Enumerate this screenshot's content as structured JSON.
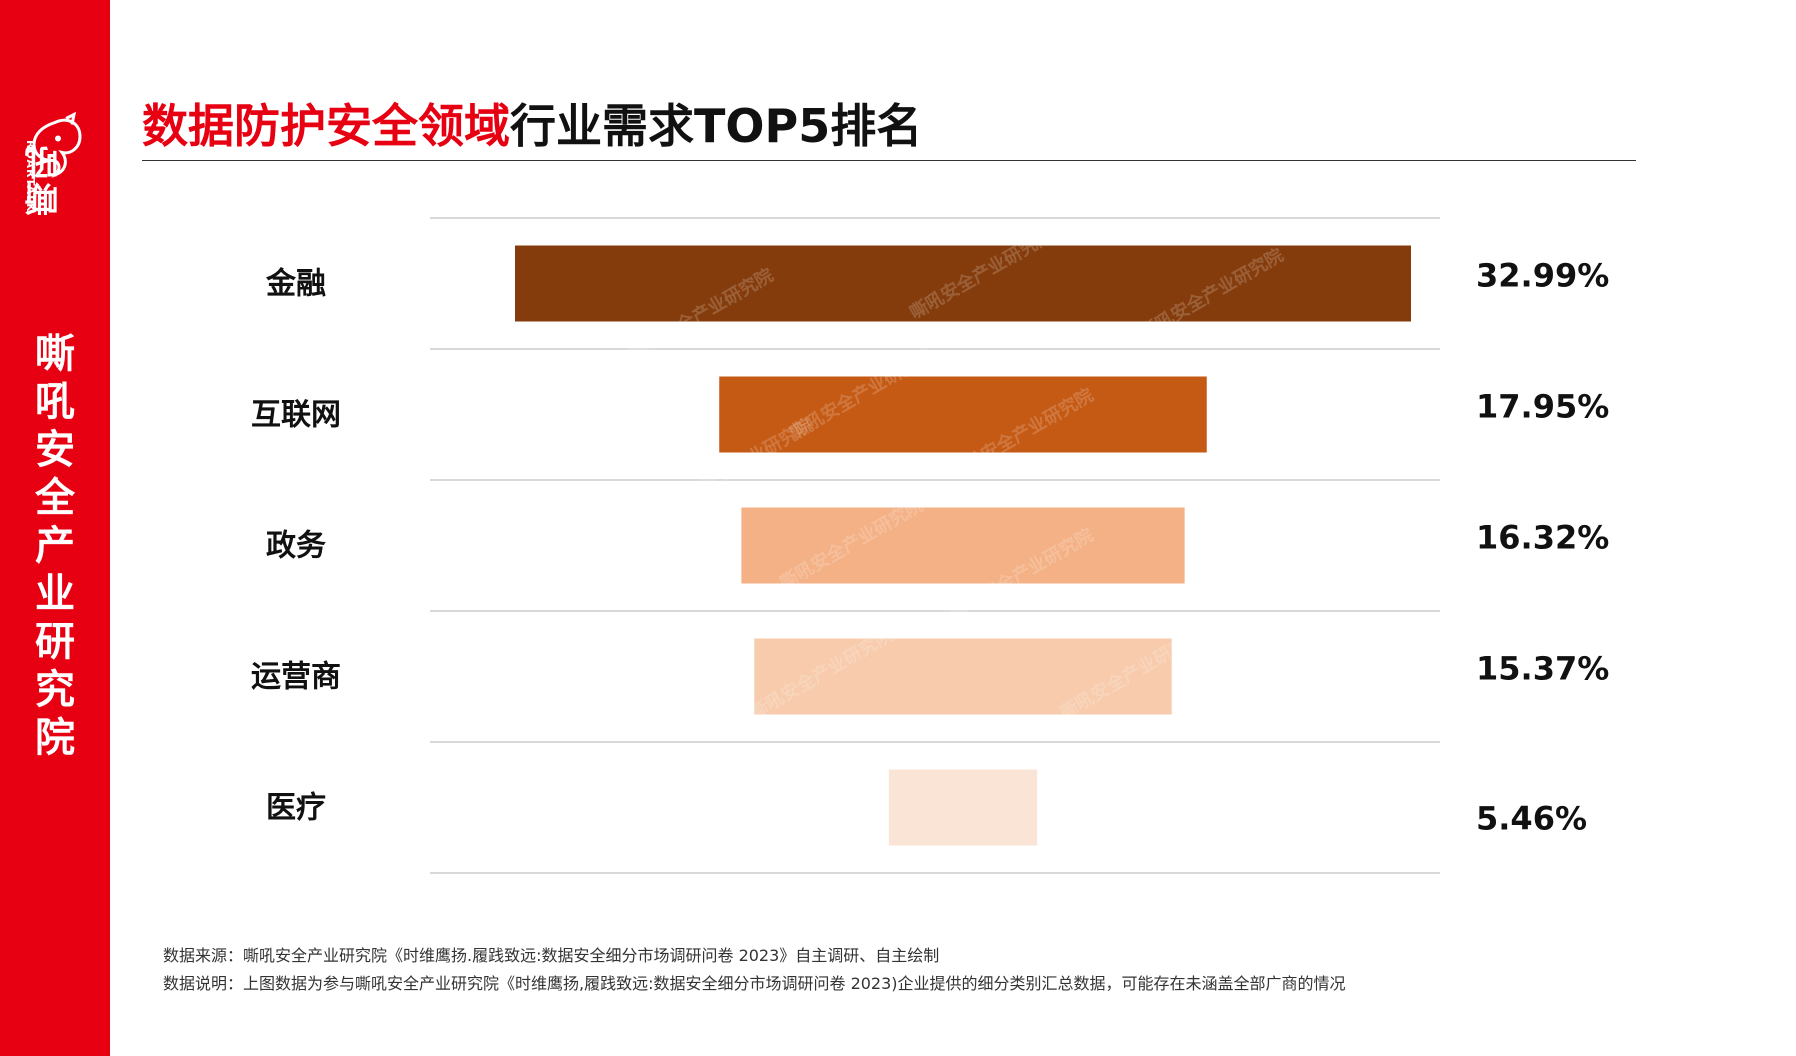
{
  "sidebar": {
    "logo_cn": "嘶吼",
    "logo_en": "ROARTALK",
    "vertical_title": "嘶吼安全产业研究院",
    "bg_color": "#e60012"
  },
  "title": {
    "red_part": "数据防护安全领域",
    "black_part": "行业需求TOP5排名",
    "accent": "#e60012"
  },
  "chart_data": {
    "type": "bar",
    "orientation": "horizontal-funnel",
    "categories": [
      "金融",
      "互联网",
      "政务",
      "运营商",
      "医疗"
    ],
    "values": [
      32.99,
      17.95,
      16.32,
      15.37,
      5.46
    ],
    "value_labels": [
      "32.99%",
      "17.95%",
      "16.32%",
      "15.37%",
      "5.46%"
    ],
    "colors": [
      "#853c0c",
      "#c55a14",
      "#f4b186",
      "#f7cbac",
      "#fae4d5"
    ],
    "title": "",
    "xlabel": "",
    "ylabel": "",
    "grid": true
  },
  "watermark": "嘶吼安全产业研究院",
  "notes": {
    "source": "数据来源：嘶吼安全产业研究院《时维鹰扬.履践致远:数据安全细分市场调研问卷 2023》自主调研、自主绘制",
    "explanation": "数据说明：上图数据为参与嘶吼安全产业研究院《时维鹰扬,履践致远:数据安全细分市场调研问卷 2023)企业提供的细分类别汇总数据，可能存在未涵盖全部广商的情况"
  }
}
